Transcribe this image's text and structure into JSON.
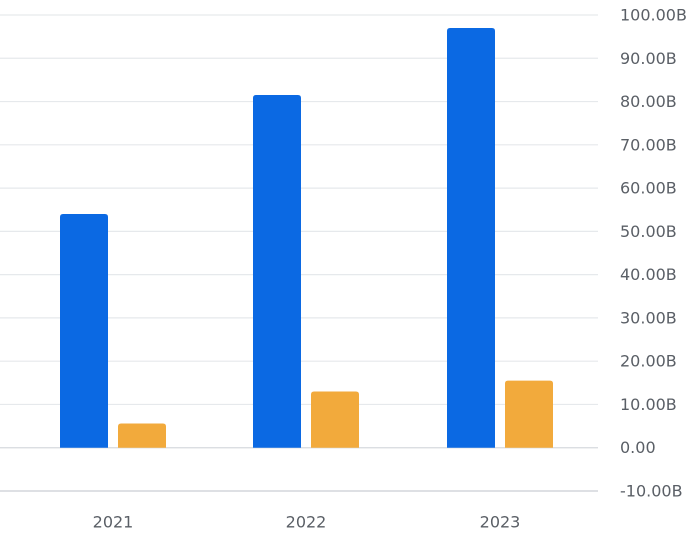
{
  "chart_data": {
    "type": "bar",
    "categories": [
      "2021",
      "2022",
      "2023"
    ],
    "series": [
      {
        "color": "#0b69e3",
        "values": [
          54.0,
          81.5,
          97.0
        ]
      },
      {
        "color": "#f2aa3c",
        "values": [
          5.6,
          13.0,
          15.5
        ]
      }
    ],
    "ylim": [
      -10,
      100
    ],
    "yticks": [
      100,
      90,
      80,
      70,
      60,
      50,
      40,
      30,
      20,
      10,
      0,
      -10
    ],
    "ytick_labels": [
      "100.00B",
      "90.00B",
      "80.00B",
      "70.00B",
      "60.00B",
      "50.00B",
      "40.00B",
      "30.00B",
      "20.00B",
      "10.00B",
      "0.00",
      "-10.00B"
    ],
    "y_axis_position": "right",
    "grid": true,
    "title": "",
    "xlabel": "",
    "ylabel": ""
  }
}
